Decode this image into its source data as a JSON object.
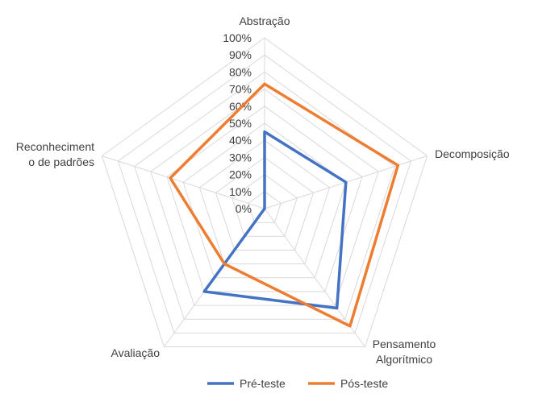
{
  "chart_data": {
    "type": "radar",
    "axes": [
      [
        "Abstração"
      ],
      [
        "Decomposição"
      ],
      [
        "Pensamento",
        "Algorítmico"
      ],
      [
        "Avaliação"
      ],
      [
        "Reconheciment",
        "o de padrões"
      ]
    ],
    "r_ticks": [
      "0%",
      "10%",
      "20%",
      "30%",
      "40%",
      "50%",
      "60%",
      "70%",
      "80%",
      "90%",
      "100%"
    ],
    "r_range": [
      0,
      100
    ],
    "grid": true,
    "legend_position": "bottom",
    "series": [
      {
        "name": "Pré-teste",
        "color": "#4472C4",
        "values": [
          45,
          50,
          72,
          60,
          0
        ]
      },
      {
        "name": "Pós-teste",
        "color": "#ED7D31",
        "values": [
          73,
          82,
          85,
          40,
          58
        ]
      }
    ]
  }
}
